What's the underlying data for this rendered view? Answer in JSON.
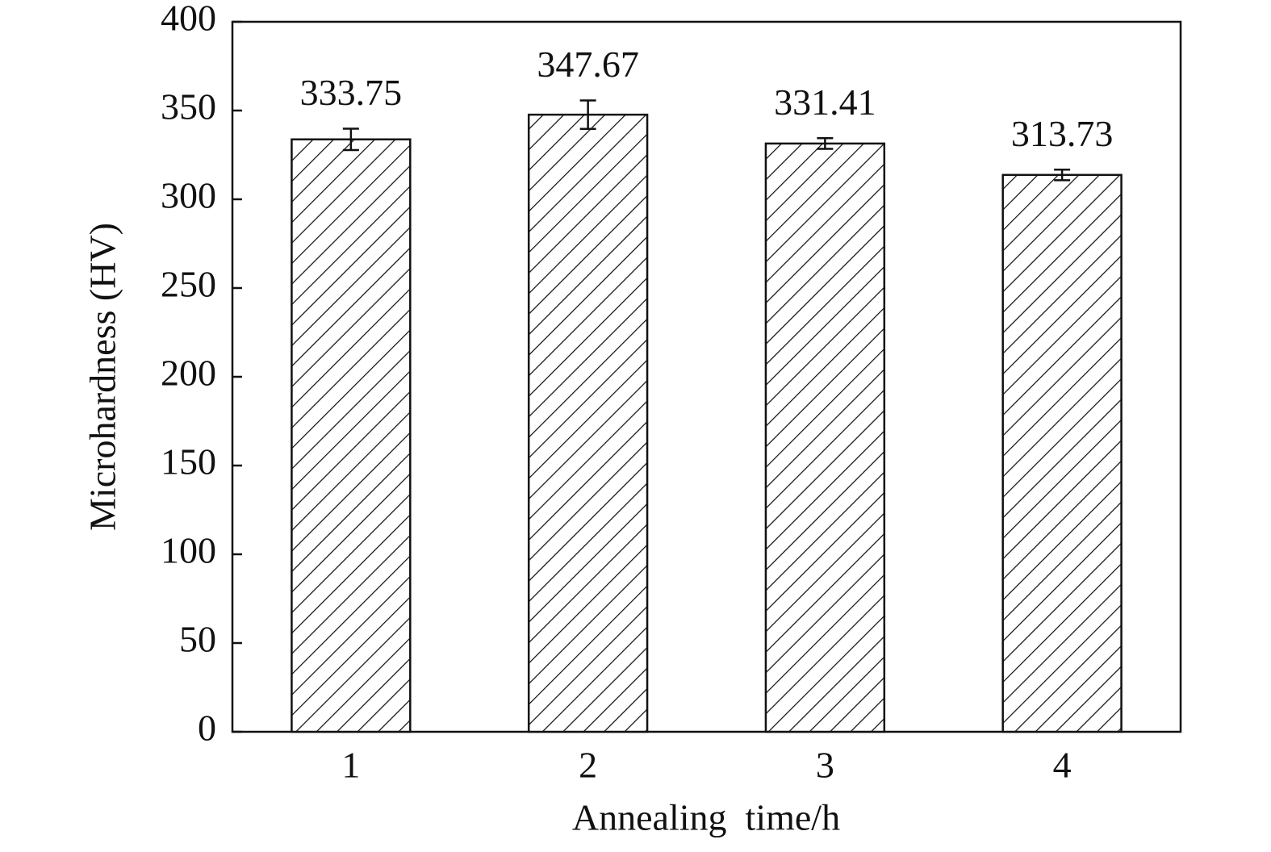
{
  "chart_data": {
    "type": "bar",
    "x_label": "Annealing  time/h",
    "y_label": "Microhardness (HV)",
    "categories": [
      "1",
      "2",
      "3",
      "4"
    ],
    "values": [
      333.75,
      347.67,
      331.41,
      313.73
    ],
    "errors": [
      6,
      8,
      3,
      3
    ],
    "color": "#ffffff",
    "ylim": [
      0,
      400
    ],
    "yticks": [
      0,
      50,
      100,
      150,
      200,
      250,
      300,
      350,
      400
    ],
    "grid": false
  }
}
